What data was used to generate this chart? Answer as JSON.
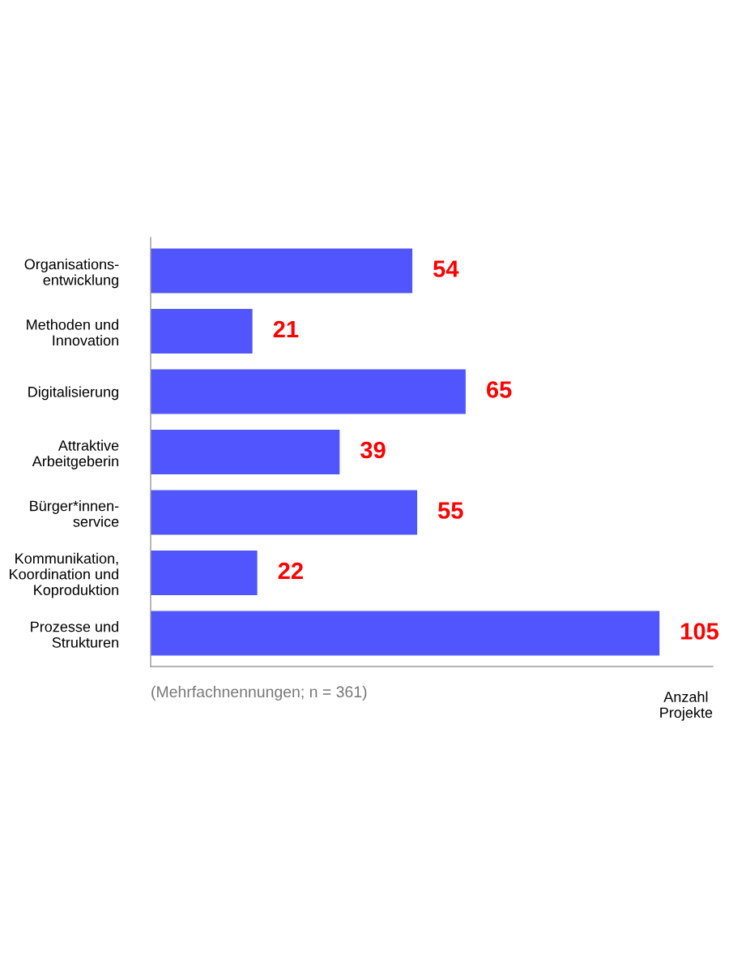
{
  "chart_data": {
    "type": "bar",
    "orientation": "horizontal",
    "categories": [
      "Organisations-\nentwicklung",
      "Methoden und\nInnovation",
      "Digitalisierung",
      "Attraktive\nArbeitgeberin",
      "Bürger*innen-\nservice",
      "Kommunikation,\nKoordination und\nKoproduktion",
      "Prozesse und\nStrukturen"
    ],
    "values": [
      54,
      21,
      65,
      39,
      55,
      22,
      105
    ],
    "color": "#5055fe",
    "data_labels": true,
    "xlim": [
      0,
      116
    ],
    "xlabel": "Anzahl\nProjekte",
    "tick_labels": "y",
    "grid": false,
    "annotations": [
      "(Mehrfachnennungen; n = 361)"
    ]
  }
}
